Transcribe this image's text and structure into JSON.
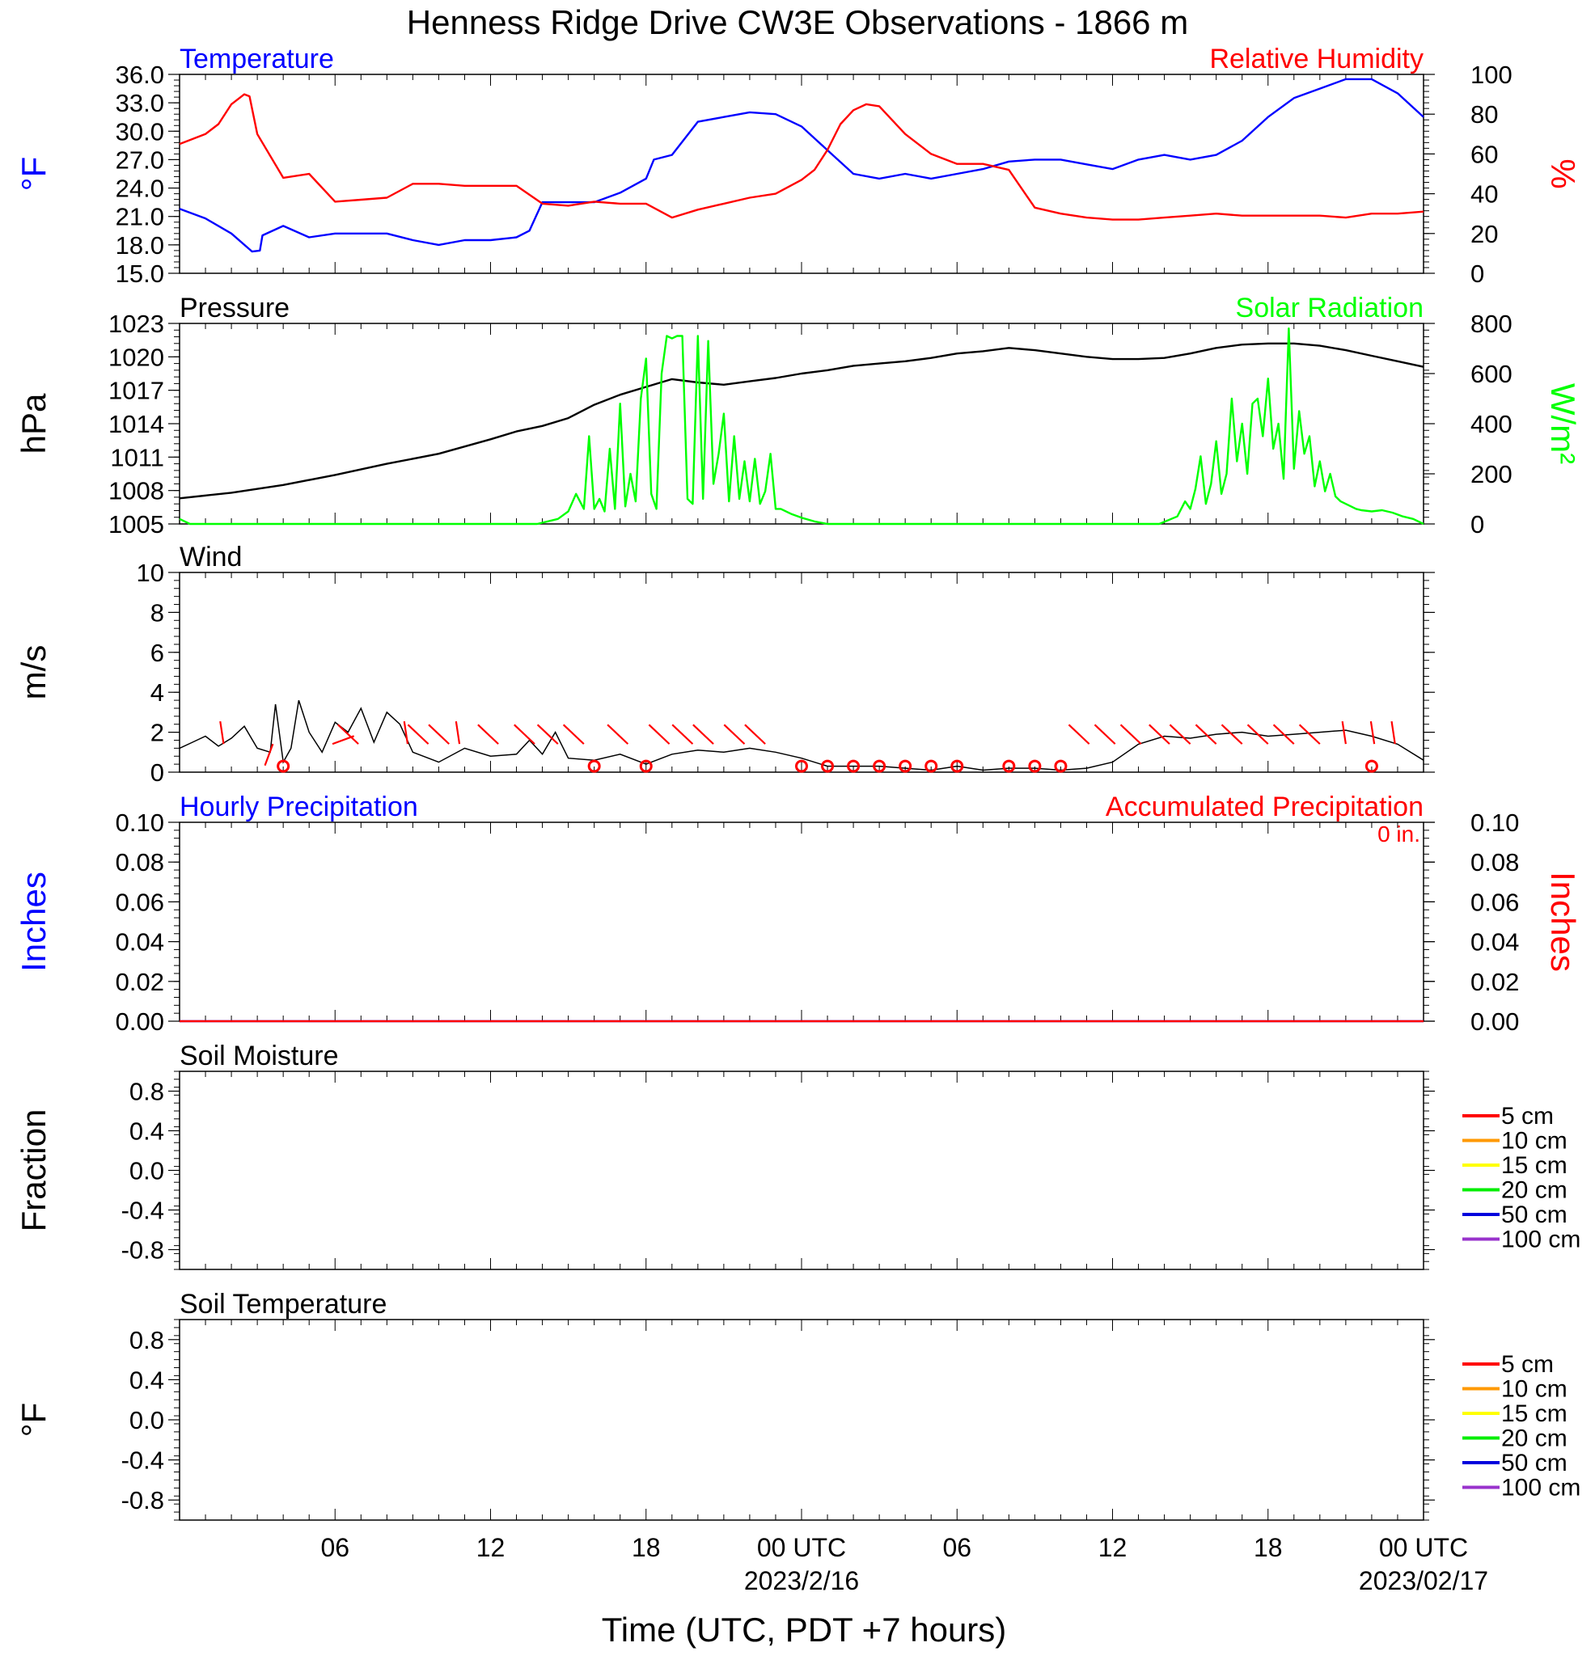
{
  "title": "Henness Ridge Drive CW3E Observations - 1866 m",
  "time_axis": {
    "tick_labels": [
      "06",
      "12",
      "18",
      "00 UTC",
      "06",
      "12",
      "18",
      "00 UTC"
    ],
    "date_labels": [
      "2023/2/16",
      "2023/02/17"
    ],
    "xlabel": "Time (UTC, PDT +7 hours)",
    "range_hours": [
      0,
      48
    ]
  },
  "colors": {
    "temperature": "#0000ff",
    "humidity": "#ff0000",
    "pressure": "#000000",
    "solar": "#00ff00",
    "wind": "#000000",
    "wind_barb": "#ff0000",
    "precip_hourly": "#0000ff",
    "precip_accum": "#ff0000"
  },
  "soil_legend": [
    {
      "label": "5 cm",
      "color": "#ff0000"
    },
    {
      "label": "10 cm",
      "color": "#ff9900"
    },
    {
      "label": "15 cm",
      "color": "#ffff00"
    },
    {
      "label": "20 cm",
      "color": "#00ee00"
    },
    {
      "label": "50 cm",
      "color": "#0000dd"
    },
    {
      "label": "100 cm",
      "color": "#9933cc"
    }
  ],
  "chart_data": [
    {
      "type": "line",
      "panel": "temperature-humidity",
      "left_title": "Temperature",
      "right_title": "Relative Humidity",
      "ylabel_left": "°F",
      "ylabel_right": "%",
      "yticks_left": [
        "36.0",
        "33.0",
        "30.0",
        "27.0",
        "24.0",
        "21.0",
        "18.0",
        "15.0"
      ],
      "yticks_right": [
        "100",
        "80",
        "60",
        "40",
        "20",
        "0"
      ],
      "ylim_left": [
        15,
        36
      ],
      "ylim_right": [
        0,
        100
      ],
      "series": [
        {
          "axis": "left",
          "color": "#0000ff",
          "x": [
            0,
            1,
            2,
            2.8,
            3.1,
            3.2,
            4,
            5,
            6,
            8,
            9,
            10,
            11,
            12,
            13,
            13.5,
            14,
            15,
            16,
            17,
            18,
            18.3,
            19,
            20,
            21,
            22,
            23,
            24,
            25,
            26,
            27,
            28,
            29,
            30,
            31,
            32,
            33,
            34,
            35,
            36,
            37,
            38,
            39,
            40,
            41,
            42,
            43,
            44,
            45,
            46,
            47,
            48
          ],
          "y": [
            21.8,
            20.8,
            19.2,
            17.3,
            17.4,
            19,
            20,
            18.8,
            19.2,
            19.2,
            18.5,
            18,
            18.5,
            18.5,
            18.8,
            19.5,
            22.5,
            22.5,
            22.5,
            23.5,
            25,
            27,
            27.5,
            31,
            31.5,
            32,
            31.8,
            30.5,
            28,
            25.5,
            25,
            25.5,
            25,
            25.5,
            26,
            26.8,
            27,
            27,
            26.5,
            26,
            27,
            27.5,
            27,
            27.5,
            29,
            31.5,
            33.5,
            34.5,
            35.5,
            35.5,
            34,
            31.5
          ]
        },
        {
          "axis": "right",
          "color": "#ff0000",
          "x": [
            0,
            1,
            1.5,
            2,
            2.5,
            2.7,
            3,
            4,
            5,
            6,
            7,
            8,
            9,
            10,
            11,
            12,
            13,
            14,
            15,
            16,
            17,
            18,
            19,
            20,
            21,
            22,
            23,
            24,
            24.5,
            25,
            25.5,
            26,
            26.5,
            27,
            28,
            29,
            30,
            31,
            32,
            33,
            34,
            35,
            36,
            37,
            38,
            39,
            40,
            41,
            42,
            43,
            44,
            45,
            46,
            47,
            48
          ],
          "y": [
            65,
            70,
            75,
            85,
            90,
            89,
            70,
            48,
            50,
            36,
            37,
            38,
            45,
            45,
            44,
            44,
            44,
            35,
            34,
            36,
            35,
            35,
            28,
            32,
            35,
            38,
            40,
            47,
            52,
            62,
            75,
            82,
            85,
            84,
            70,
            60,
            55,
            55,
            52,
            33,
            30,
            28,
            27,
            27,
            28,
            29,
            30,
            29,
            29,
            29,
            29,
            28,
            30,
            30,
            31
          ]
        }
      ]
    },
    {
      "type": "line",
      "panel": "pressure-solar",
      "left_title": "Pressure",
      "right_title": "Solar Radiation",
      "ylabel_left": "hPa",
      "ylabel_right": "W/m²",
      "yticks_left": [
        "1023",
        "1020",
        "1017",
        "1014",
        "1011",
        "1008",
        "1005"
      ],
      "yticks_right": [
        "800",
        "600",
        "400",
        "200",
        "0"
      ],
      "ylim_left": [
        1005,
        1023
      ],
      "ylim_right": [
        0,
        800
      ],
      "series": [
        {
          "axis": "left",
          "color": "#000000",
          "x": [
            0,
            2,
            4,
            6,
            8,
            10,
            12,
            13,
            14,
            15,
            16,
            17,
            18,
            19,
            20,
            21,
            22,
            23,
            24,
            25,
            26,
            27,
            28,
            29,
            30,
            31,
            32,
            33,
            34,
            35,
            36,
            37,
            38,
            39,
            40,
            41,
            42,
            43,
            44,
            45,
            46,
            47,
            48
          ],
          "y": [
            1007.3,
            1007.8,
            1008.5,
            1009.4,
            1010.4,
            1011.3,
            1012.6,
            1013.3,
            1013.8,
            1014.5,
            1015.7,
            1016.6,
            1017.3,
            1018,
            1017.7,
            1017.5,
            1017.8,
            1018.1,
            1018.5,
            1018.8,
            1019.2,
            1019.4,
            1019.6,
            1019.9,
            1020.3,
            1020.5,
            1020.8,
            1020.6,
            1020.3,
            1020,
            1019.8,
            1019.8,
            1019.9,
            1020.3,
            1020.8,
            1021.1,
            1021.2,
            1021.2,
            1021,
            1020.6,
            1020.1,
            1019.6,
            1019.1
          ]
        },
        {
          "axis": "right",
          "color": "#00ff00",
          "x": [
            0,
            0.4,
            13.8,
            14.6,
            15,
            15.3,
            15.6,
            15.8,
            16,
            16.2,
            16.4,
            16.6,
            16.8,
            17,
            17.2,
            17.4,
            17.6,
            17.8,
            18,
            18.2,
            18.4,
            18.6,
            18.8,
            19,
            19.2,
            19.4,
            19.6,
            19.8,
            20,
            20.2,
            20.4,
            20.6,
            20.8,
            21,
            21.2,
            21.4,
            21.6,
            21.8,
            22,
            22.2,
            22.4,
            22.6,
            22.8,
            23,
            23.2,
            23.6,
            24,
            24.5,
            25,
            25.5,
            37.8,
            38.5,
            38.8,
            39,
            39.2,
            39.4,
            39.6,
            39.8,
            40,
            40.2,
            40.4,
            40.6,
            40.8,
            41,
            41.2,
            41.4,
            41.6,
            41.8,
            42,
            42.2,
            42.4,
            42.6,
            42.8,
            43,
            43.2,
            43.4,
            43.6,
            43.8,
            44,
            44.2,
            44.4,
            44.6,
            44.8,
            45,
            45.2,
            45.4,
            45.6,
            46,
            46.4,
            46.8,
            47.2,
            47.6,
            48
          ],
          "y": [
            20,
            0,
            0,
            20,
            50,
            120,
            60,
            350,
            60,
            100,
            50,
            300,
            60,
            480,
            70,
            200,
            90,
            500,
            660,
            120,
            60,
            600,
            750,
            740,
            750,
            750,
            100,
            80,
            750,
            100,
            730,
            160,
            280,
            440,
            90,
            350,
            100,
            250,
            90,
            260,
            80,
            130,
            280,
            60,
            60,
            40,
            25,
            10,
            0,
            0,
            0,
            30,
            90,
            60,
            140,
            270,
            80,
            160,
            330,
            120,
            200,
            500,
            250,
            400,
            200,
            480,
            500,
            350,
            580,
            300,
            400,
            180,
            780,
            220,
            450,
            280,
            350,
            150,
            250,
            130,
            200,
            110,
            90,
            80,
            70,
            60,
            55,
            50,
            55,
            45,
            30,
            20,
            0
          ]
        }
      ]
    },
    {
      "type": "line",
      "panel": "wind",
      "title": "Wind",
      "ylabel": "m/s",
      "yticks": [
        "10",
        "8",
        "6",
        "4",
        "2",
        "0"
      ],
      "ylim": [
        0,
        10
      ],
      "x": [
        0,
        0.5,
        1,
        1.5,
        2,
        2.5,
        3,
        3.5,
        3.7,
        4,
        4.3,
        4.6,
        5,
        5.5,
        6,
        6.5,
        7,
        7.5,
        8,
        8.5,
        9,
        10,
        11,
        12,
        13,
        13.5,
        14,
        14.5,
        15,
        16,
        17,
        18,
        19,
        20,
        21,
        22,
        23,
        24,
        25,
        26,
        27,
        28,
        29,
        30,
        31,
        32,
        33,
        34,
        35,
        36,
        37,
        38,
        39,
        40,
        41,
        42,
        43,
        44,
        45,
        46,
        47,
        48
      ],
      "y": [
        1.2,
        1.5,
        1.8,
        1.3,
        1.7,
        2.3,
        1.2,
        1.0,
        3.4,
        0.5,
        1.2,
        3.6,
        2.0,
        1.0,
        2.5,
        2.0,
        3.2,
        1.5,
        3.0,
        2.4,
        1.0,
        0.5,
        1.2,
        0.8,
        0.9,
        1.6,
        0.9,
        2.0,
        0.7,
        0.6,
        0.9,
        0.4,
        0.9,
        1.1,
        1.0,
        1.2,
        1.0,
        0.7,
        0.3,
        0.3,
        0.3,
        0.2,
        0.1,
        0.3,
        0.1,
        0.2,
        0.2,
        0.1,
        0.2,
        0.5,
        1.4,
        1.8,
        1.7,
        1.9,
        2.0,
        1.8,
        1.9,
        2.0,
        2.1,
        1.8,
        1.4,
        0.6
      ],
      "calm_markers_hours": [
        4,
        16,
        18,
        24,
        25,
        26,
        27,
        28,
        29,
        30,
        32,
        33,
        34,
        46
      ],
      "barbs": [
        {
          "x": 1.7,
          "dir": "N"
        },
        {
          "x": 3.6,
          "dir": "SW"
        },
        {
          "x": 5.9,
          "dir": "NE"
        },
        {
          "x": 6.9,
          "dir": "NW"
        },
        {
          "x": 8.8,
          "dir": "N"
        },
        {
          "x": 9.6,
          "dir": "NW"
        },
        {
          "x": 10.4,
          "dir": "NW"
        },
        {
          "x": 10.8,
          "dir": "N"
        },
        {
          "x": 12.3,
          "dir": "NW"
        },
        {
          "x": 13.7,
          "dir": "NW"
        },
        {
          "x": 14.6,
          "dir": "NW"
        },
        {
          "x": 15.6,
          "dir": "NW"
        },
        {
          "x": 17.3,
          "dir": "NW"
        },
        {
          "x": 18.9,
          "dir": "NW"
        },
        {
          "x": 19.8,
          "dir": "NW"
        },
        {
          "x": 20.6,
          "dir": "NW"
        },
        {
          "x": 21.8,
          "dir": "NW"
        },
        {
          "x": 22.6,
          "dir": "NW"
        },
        {
          "x": 35.1,
          "dir": "NW"
        },
        {
          "x": 36.1,
          "dir": "NW"
        },
        {
          "x": 37.1,
          "dir": "NW"
        },
        {
          "x": 38.2,
          "dir": "NW"
        },
        {
          "x": 39.0,
          "dir": "NW"
        },
        {
          "x": 40.0,
          "dir": "NW"
        },
        {
          "x": 41.0,
          "dir": "NW"
        },
        {
          "x": 42.0,
          "dir": "NW"
        },
        {
          "x": 43.0,
          "dir": "NW"
        },
        {
          "x": 44.0,
          "dir": "NW"
        },
        {
          "x": 45.0,
          "dir": "N"
        },
        {
          "x": 46.1,
          "dir": "N"
        },
        {
          "x": 46.9,
          "dir": "N"
        }
      ]
    },
    {
      "type": "line",
      "panel": "precipitation",
      "left_title": "Hourly Precipitation",
      "right_title": "Accumulated Precipitation",
      "total_label": "0 in.",
      "ylabel_left": "Inches",
      "ylabel_right": "Inches",
      "yticks": [
        "0.10",
        "0.08",
        "0.06",
        "0.04",
        "0.02",
        "0.00"
      ],
      "ylim": [
        0,
        0.1
      ],
      "series": [
        {
          "name": "Hourly Precipitation",
          "color": "#0000ff",
          "x": [
            0,
            48
          ],
          "y": [
            0,
            0
          ]
        },
        {
          "name": "Accumulated Precipitation",
          "color": "#ff0000",
          "x": [
            0,
            48
          ],
          "y": [
            0,
            0
          ]
        }
      ]
    },
    {
      "type": "line",
      "panel": "soil-moisture",
      "title": "Soil Moisture",
      "ylabel": "Fraction",
      "yticks": [
        "0.8",
        "0.4",
        "0.0",
        "-0.4",
        "-0.8"
      ],
      "ylim": [
        -1,
        1
      ],
      "series": []
    },
    {
      "type": "line",
      "panel": "soil-temperature",
      "title": "Soil Temperature",
      "ylabel": "°F",
      "yticks": [
        "0.8",
        "0.4",
        "0.0",
        "-0.4",
        "-0.8"
      ],
      "ylim": [
        -1,
        1
      ],
      "series": []
    }
  ]
}
